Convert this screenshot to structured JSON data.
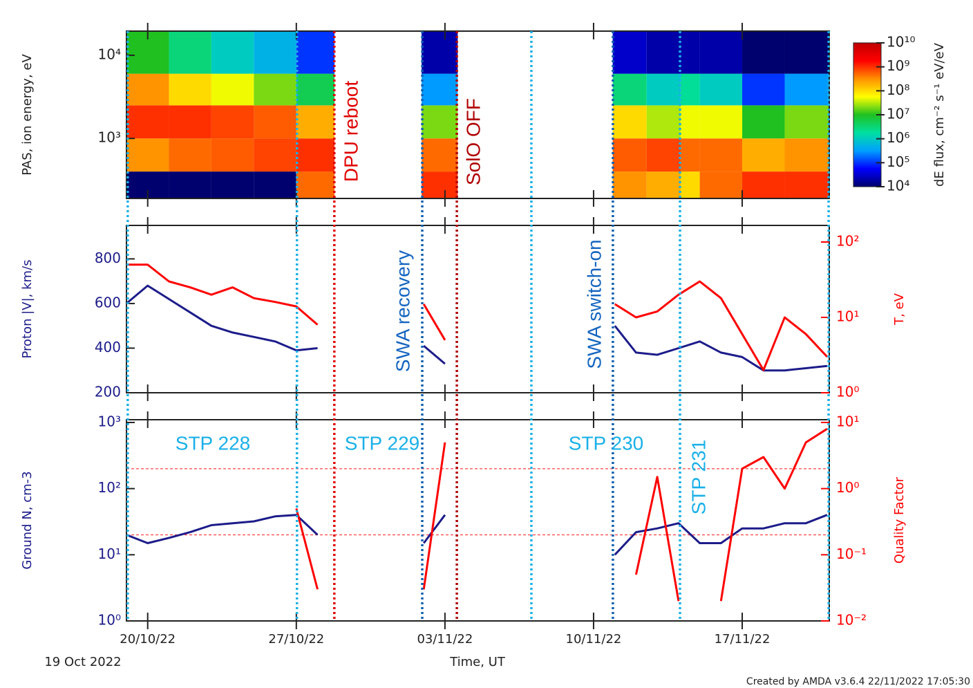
{
  "time_axis": {
    "label": "Time, UT",
    "xlim": [
      0,
      33.1
    ],
    "xticks": [
      {
        "value": 1,
        "label": "20/10/22"
      },
      {
        "value": 8,
        "label": "27/10/22"
      },
      {
        "value": 15,
        "label": "03/11/22"
      },
      {
        "value": 22,
        "label": "10/11/22"
      },
      {
        "value": 29,
        "label": "17/11/22"
      }
    ]
  },
  "chart_data": [
    {
      "type": "heatmap",
      "ylabel": "PAS, ion energy, eV",
      "log_y": true,
      "ylim": [
        190,
        19500
      ],
      "yticks": [
        {
          "value": 1000,
          "label": "10³"
        },
        {
          "value": 10000,
          "label": "10⁴"
        }
      ],
      "x_bins": [
        0,
        2,
        4,
        6,
        8,
        9.8,
        13.9,
        15.6,
        22.9,
        24.5,
        26.1,
        27,
        29,
        31,
        33.1
      ],
      "y_bins": [
        190,
        400,
        1000,
        2500,
        6000,
        19500
      ],
      "z": [
        [
          10000.0,
          300000000.0,
          1000000000.0,
          300000000.0,
          10000000.0
        ],
        [
          10000.0,
          500000000.0,
          1000000000.0,
          100000000.0,
          3000000.0
        ],
        [
          10000.0,
          600000000.0,
          800000000.0,
          50000000.0,
          1000000.0
        ],
        [
          10000.0,
          800000000.0,
          600000000.0,
          20000000.0,
          500000.0
        ],
        [
          500000000.0,
          1000000000.0,
          200000000.0,
          5000000.0,
          100000.0
        ],
        [
          null,
          null,
          null,
          null,
          null
        ],
        [
          1000000000.0,
          500000000.0,
          20000000.0,
          300000.0,
          20000.0
        ],
        [
          null,
          null,
          null,
          null,
          null
        ],
        [
          300000000.0,
          600000000.0,
          100000000.0,
          3000000.0,
          30000.0
        ],
        [
          200000000.0,
          800000000.0,
          30000000.0,
          1000000.0,
          20000.0
        ],
        [
          100000000.0,
          500000000.0,
          50000000.0,
          2000000.0,
          20000.0
        ],
        [
          500000000.0,
          500000000.0,
          50000000.0,
          1000000.0,
          20000.0
        ],
        [
          1000000000.0,
          200000000.0,
          10000000.0,
          100000.0,
          10000.0
        ],
        [
          1000000000.0,
          300000000.0,
          20000000.0,
          300000.0,
          10000.0
        ]
      ],
      "zlim": [
        10000.0,
        10000000000.0
      ],
      "zticks": [
        {
          "value": 10000.0,
          "label": "10⁴"
        },
        {
          "value": 100000.0,
          "label": "10⁵"
        },
        {
          "value": 1000000.0,
          "label": "10⁶"
        },
        {
          "value": 10000000.0,
          "label": "10⁷"
        },
        {
          "value": 100000000.0,
          "label": "10⁸"
        },
        {
          "value": 1000000000.0,
          "label": "10⁹"
        },
        {
          "value": 10000000000.0,
          "label": "10¹⁰"
        }
      ],
      "zlabel": "dE flux, cm⁻² s⁻¹ eV/eV",
      "colorscale": [
        "#00006e",
        "#0000ff",
        "#00a0ff",
        "#00e0a0",
        "#20c020",
        "#ffff00",
        "#ff9000",
        "#ff0000",
        "#c00000"
      ]
    },
    {
      "type": "line",
      "ylabel": "Proton |V|, km/s",
      "y2label": "T, eV",
      "ylim": [
        200,
        950
      ],
      "yticks": [
        200,
        400,
        600,
        800
      ],
      "y2log": true,
      "y2lim": [
        1,
        166
      ],
      "y2ticks": [
        {
          "value": 1,
          "label": "10⁰"
        },
        {
          "value": 10,
          "label": "10¹"
        },
        {
          "value": 100,
          "label": "10²"
        }
      ],
      "x": [
        0,
        1,
        2,
        3,
        4,
        5,
        6,
        7,
        8,
        9,
        10,
        11,
        12,
        13,
        14,
        15,
        16,
        17,
        18,
        19,
        20,
        21,
        22,
        23,
        24,
        25,
        26,
        27,
        28,
        29,
        30,
        31,
        32,
        33
      ],
      "series": [
        {
          "color": "#1c1c8a",
          "values": [
            600,
            680,
            620,
            560,
            500,
            470,
            450,
            430,
            390,
            400,
            null,
            null,
            null,
            null,
            410,
            330,
            null,
            null,
            null,
            null,
            null,
            null,
            null,
            500,
            380,
            370,
            400,
            430,
            380,
            360,
            300,
            300,
            310,
            320
          ]
        },
        {
          "color": "#ff0000",
          "axis": "y2",
          "values": [
            50,
            50,
            30,
            25,
            20,
            25,
            18,
            16,
            14,
            8,
            null,
            null,
            null,
            null,
            15,
            5,
            null,
            null,
            null,
            null,
            null,
            null,
            null,
            15,
            10,
            12,
            20,
            30,
            18,
            6,
            2,
            10,
            6,
            3
          ]
        }
      ]
    },
    {
      "type": "line",
      "ylabel": "Ground N, cm-3",
      "y2label": "Quality Factor",
      "log_y": true,
      "ylim": [
        1,
        1100
      ],
      "yticks": [
        {
          "value": 1,
          "label": "10⁰"
        },
        {
          "value": 10,
          "label": "10¹"
        },
        {
          "value": 100,
          "label": "10²"
        },
        {
          "value": 1000,
          "label": "10³"
        }
      ],
      "y2log": true,
      "y2lim": [
        0.01,
        11
      ],
      "y2ticks": [
        {
          "value": 0.01,
          "label": "10⁻²"
        },
        {
          "value": 0.1,
          "label": "10⁻¹"
        },
        {
          "value": 1,
          "label": "10⁰"
        },
        {
          "value": 10,
          "label": "10¹"
        }
      ],
      "hlines": [
        2,
        0.2
      ],
      "hline_color": "#ff4040",
      "x": [
        0,
        1,
        2,
        3,
        4,
        5,
        6,
        7,
        8,
        9,
        10,
        11,
        12,
        13,
        14,
        15,
        16,
        17,
        18,
        19,
        20,
        21,
        22,
        23,
        24,
        25,
        26,
        27,
        28,
        29,
        30,
        31,
        32,
        33
      ],
      "series": [
        {
          "color": "#1c1c8a",
          "values": [
            20,
            15,
            18,
            22,
            28,
            30,
            32,
            38,
            40,
            20,
            null,
            null,
            null,
            null,
            15,
            40,
            null,
            null,
            null,
            null,
            null,
            null,
            null,
            10,
            22,
            25,
            30,
            15,
            15,
            25,
            25,
            30,
            30,
            40
          ]
        },
        {
          "color": "#ff0000",
          "axis": "y2",
          "values": [
            null,
            null,
            null,
            null,
            null,
            null,
            null,
            null,
            0.5,
            0.03,
            null,
            null,
            null,
            null,
            0.03,
            5,
            null,
            null,
            null,
            null,
            null,
            null,
            null,
            null,
            0.05,
            1.5,
            0.02,
            null,
            0.02,
            2,
            3,
            1,
            5,
            8
          ]
        }
      ]
    }
  ],
  "markers": [
    {
      "x": 0.06,
      "color": "#1ab0e8"
    },
    {
      "x": 8.03,
      "color": "#1ab0e8"
    },
    {
      "x": 9.79,
      "color": "#e00000"
    },
    {
      "x": 13.93,
      "color": "#1060b0"
    },
    {
      "x": 15.56,
      "color": "#b00000"
    },
    {
      "x": 19.07,
      "color": "#1ab0e8"
    },
    {
      "x": 22.91,
      "color": "#1060b0"
    },
    {
      "x": 26.07,
      "color": "#1ab0e8"
    },
    {
      "x": 33.07,
      "color": "#1ab0e8"
    }
  ],
  "annotations": [
    {
      "text": "DPU reboot",
      "color": "#e00000"
    },
    {
      "text": "SolO OFF",
      "color": "#b00000"
    },
    {
      "text": "SWA recovery",
      "color": "#1565c0"
    },
    {
      "text": "SWA switch-on",
      "color": "#1565c0"
    },
    {
      "text": "STP 228",
      "color": "#1ab0e8"
    },
    {
      "text": "STP 229",
      "color": "#1ab0e8"
    },
    {
      "text": "STP 230",
      "color": "#1ab0e8"
    },
    {
      "text": "STP 231",
      "color": "#1ab0e8"
    }
  ],
  "footer": {
    "start": "19 Oct 2022",
    "credit": "Created by AMDA v3.6.4 22/11/2022 17:05:30"
  }
}
